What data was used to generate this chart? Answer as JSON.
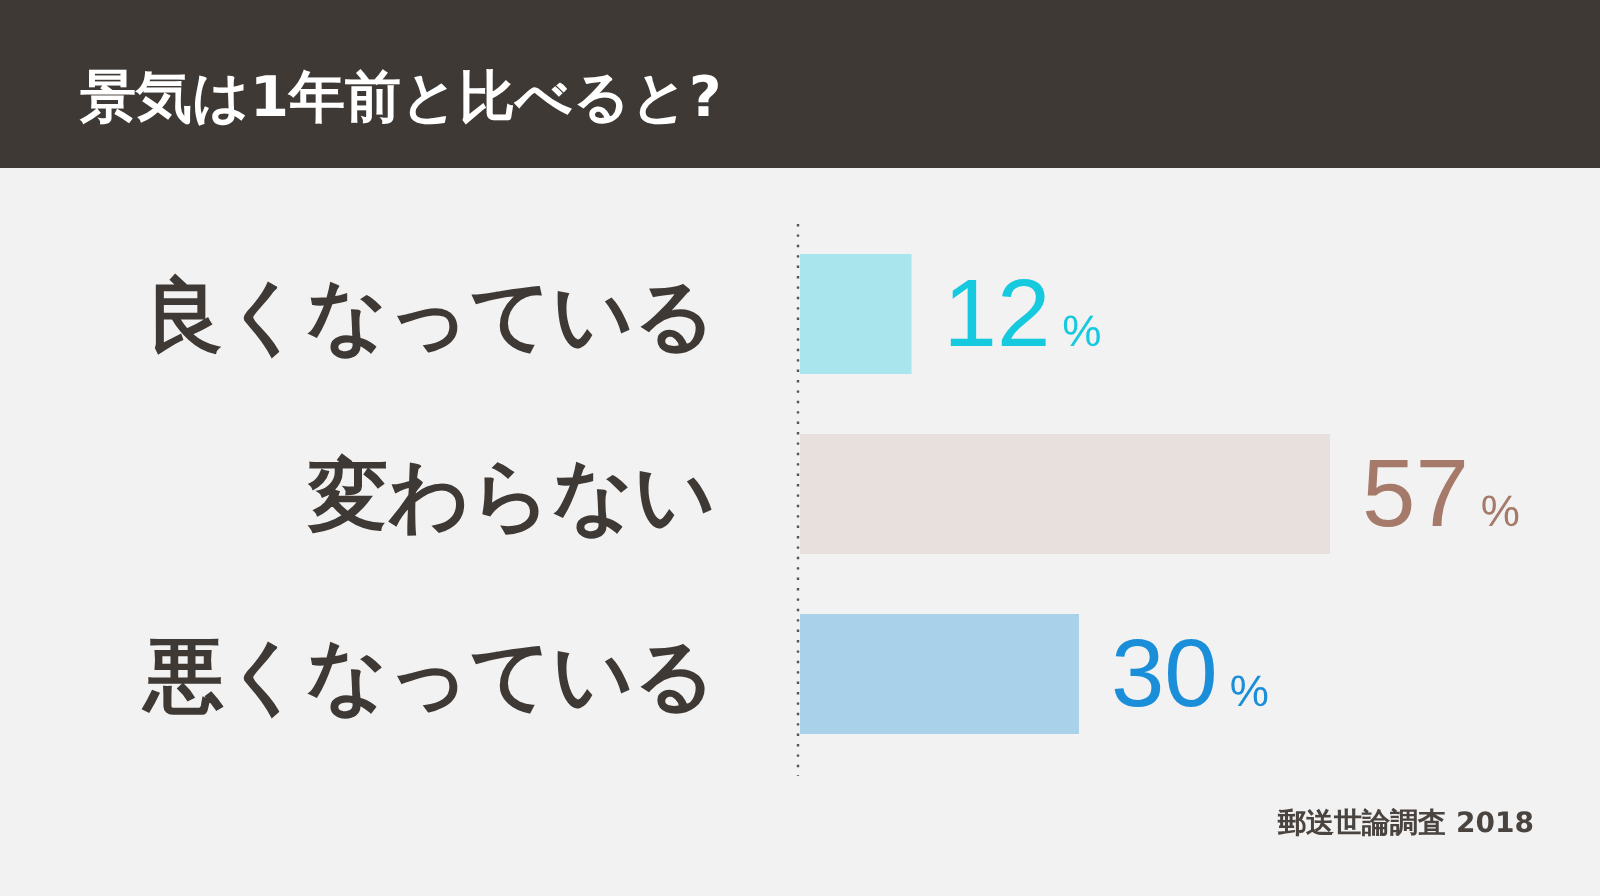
{
  "chart_data": {
    "type": "bar",
    "orientation": "horizontal",
    "title": "景気は1年前と比べると?",
    "categories": [
      "良くなっている",
      "変わらない",
      "悪くなっている"
    ],
    "values": [
      12,
      57,
      30
    ],
    "colors": [
      "#a9e5ec",
      "#e8e0dd",
      "#aad1ea"
    ],
    "value_labels": [
      "12%",
      "57%",
      "30%"
    ],
    "annotations": [
      "郵送世論調査 2018"
    ]
  }
}
